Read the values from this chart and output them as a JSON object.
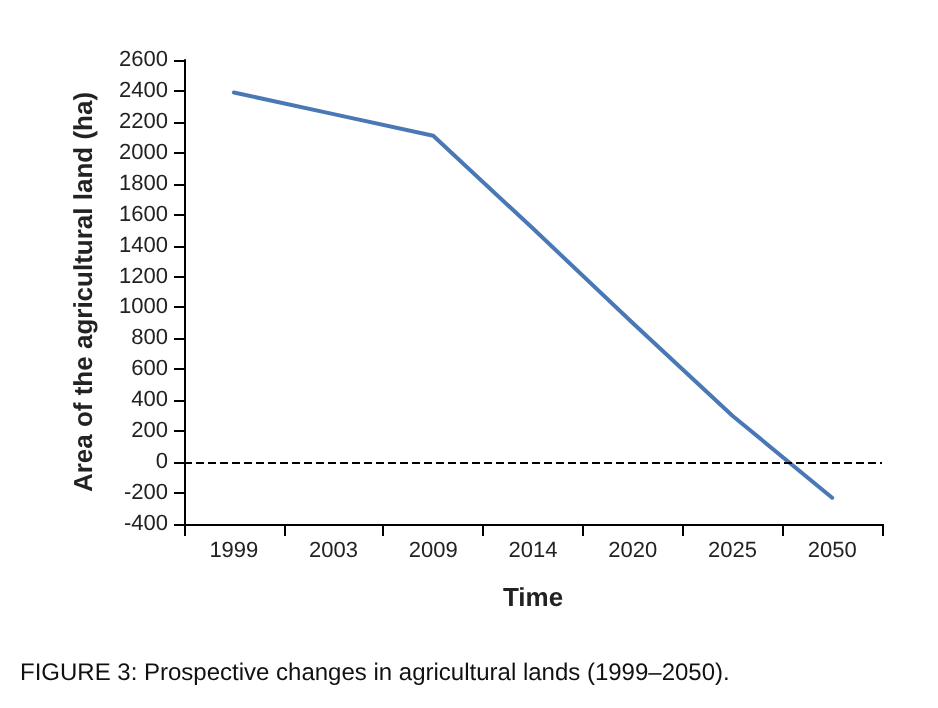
{
  "chart_data": {
    "type": "line",
    "xlabel": "Time",
    "ylabel": "Area of the agricultural land (ha)",
    "categories": [
      "1999",
      "2003",
      "2009",
      "2014",
      "2020",
      "2025",
      "2050"
    ],
    "series": [
      {
        "color": "#4a78b5",
        "values": [
          2390,
          2250,
          2110,
          1510,
          900,
          300,
          -230
        ]
      }
    ],
    "ylim": [
      -400,
      2600
    ],
    "yticks": [
      -400,
      -200,
      0,
      200,
      400,
      600,
      800,
      1000,
      1200,
      1400,
      1600,
      1800,
      2000,
      2200,
      2400,
      2600
    ],
    "ref_lines": [
      {
        "axis": "y",
        "value": 0,
        "color": "#000000",
        "line_style": "dashed"
      }
    ],
    "grid": false,
    "marker": "none",
    "line_style": "solid",
    "annotations": [
      "FIGURE 3: Prospective changes in agricultural lands (1999–2050)."
    ]
  }
}
